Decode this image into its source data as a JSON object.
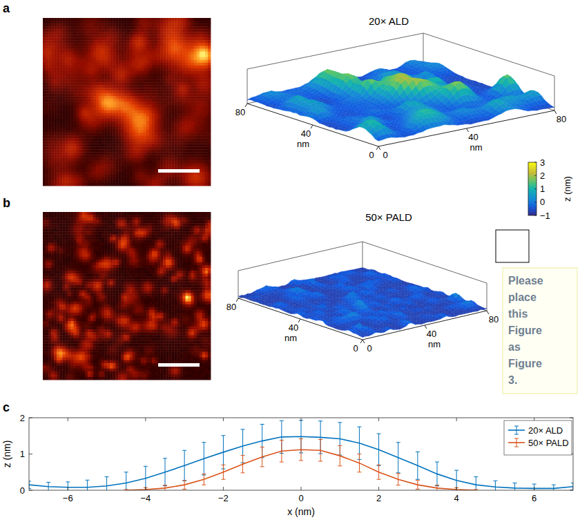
{
  "chart_data": [
    {
      "type": "surface",
      "panel_label": "a",
      "title": "20× ALD",
      "xlim": [
        0,
        80
      ],
      "ylim": [
        0,
        80
      ],
      "xticks": [
        0,
        40,
        80
      ],
      "yticks": [
        0,
        40,
        80
      ],
      "xlabel": "nm",
      "ylabel": "nm",
      "colorbar": {
        "range": [
          -1,
          3
        ],
        "label": "z (nm)",
        "ticks": [
          3,
          2,
          1,
          0,
          {
            "value": -1,
            "label": "−1"
          }
        ]
      }
    },
    {
      "type": "surface",
      "panel_label": "b",
      "title": "50× PALD",
      "xlim": [
        0,
        80
      ],
      "ylim": [
        0,
        80
      ],
      "xticks": [
        0,
        40,
        80
      ],
      "yticks": [
        0,
        40,
        80
      ],
      "xlabel": "nm",
      "ylabel": "nm",
      "annotations": [
        "Please place this Figure as Figure 3."
      ]
    },
    {
      "type": "line",
      "panel_label": "c",
      "xlabel": "x (nm)",
      "ylabel": "z (nm)",
      "xlim": [
        -7,
        7
      ],
      "ylim": [
        0,
        2
      ],
      "xticks": [
        {
          "value": -6,
          "label": "−6"
        },
        {
          "value": -4,
          "label": "−4"
        },
        {
          "value": -2,
          "label": "−2"
        },
        0,
        2,
        4,
        6
      ],
      "yticks": [
        0,
        1,
        2
      ],
      "grid": false,
      "legend": "upper right",
      "line_style": "solid",
      "series": [
        {
          "name": "20× ALD",
          "color": "#0072bd",
          "x": [
            -7,
            -6.5,
            -6,
            -5.5,
            -5,
            -4.5,
            -4,
            -3.5,
            -3,
            -2.5,
            -2,
            -1.5,
            -1,
            -0.5,
            0,
            0.5,
            1,
            1.5,
            2,
            2.5,
            3,
            3.5,
            4,
            4.5,
            5,
            5.5,
            6,
            6.5,
            7
          ],
          "values": [
            0.15,
            0.1,
            0.08,
            0.08,
            0.12,
            0.2,
            0.33,
            0.5,
            0.68,
            0.87,
            1.05,
            1.22,
            1.36,
            1.47,
            1.48,
            1.46,
            1.42,
            1.3,
            1.12,
            0.9,
            0.68,
            0.45,
            0.27,
            0.15,
            0.09,
            0.06,
            0.05,
            0.05,
            0.1
          ],
          "errors": [
            0.1,
            0.12,
            0.15,
            0.2,
            0.25,
            0.3,
            0.33,
            0.38,
            0.42,
            0.45,
            0.46,
            0.46,
            0.46,
            0.45,
            0.45,
            0.45,
            0.45,
            0.45,
            0.44,
            0.42,
            0.38,
            0.33,
            0.28,
            0.22,
            0.17,
            0.14,
            0.12,
            0.1,
            0.1
          ]
        },
        {
          "name": "50× PALD",
          "color": "#d95319",
          "x": [
            -4.5,
            -4,
            -3.5,
            -3,
            -2.5,
            -2,
            -1.5,
            -1,
            -0.5,
            0,
            0.5,
            1,
            1.5,
            2,
            2.5,
            3,
            3.5,
            4,
            4.5
          ],
          "values": [
            0,
            0.02,
            0.06,
            0.15,
            0.3,
            0.5,
            0.72,
            0.92,
            1.08,
            1.12,
            1.1,
            0.95,
            0.75,
            0.5,
            0.3,
            0.15,
            0.06,
            0.02,
            0
          ],
          "errors": [
            0.02,
            0.05,
            0.08,
            0.12,
            0.15,
            0.2,
            0.24,
            0.27,
            0.3,
            0.3,
            0.3,
            0.28,
            0.25,
            0.2,
            0.16,
            0.12,
            0.08,
            0.05,
            0.02
          ]
        }
      ]
    }
  ]
}
